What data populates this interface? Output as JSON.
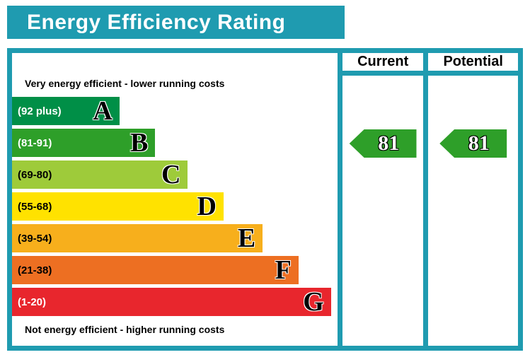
{
  "chart_data": {
    "type": "epc-energy-rating",
    "title": "Energy Efficiency Rating",
    "top_label": "Very energy efficient - lower running costs",
    "bottom_label": "Not energy efficient - higher running costs",
    "columns": {
      "current": "Current",
      "potential": "Potential"
    },
    "bands": [
      {
        "letter": "A",
        "range": "(92 plus)",
        "color": "#008f47",
        "text_color": "#ffffff",
        "width_pct": 33
      },
      {
        "letter": "B",
        "range": "(81-91)",
        "color": "#2e9f29",
        "text_color": "#ffffff",
        "width_pct": 44
      },
      {
        "letter": "C",
        "range": "(69-80)",
        "color": "#9ecb3a",
        "text_color": "#000000",
        "width_pct": 54
      },
      {
        "letter": "D",
        "range": "(55-68)",
        "color": "#ffe200",
        "text_color": "#000000",
        "width_pct": 65
      },
      {
        "letter": "E",
        "range": "(39-54)",
        "color": "#f7af1c",
        "text_color": "#000000",
        "width_pct": 77
      },
      {
        "letter": "F",
        "range": "(21-38)",
        "color": "#ed6f22",
        "text_color": "#000000",
        "width_pct": 88
      },
      {
        "letter": "G",
        "range": "(1-20)",
        "color": "#e8262d",
        "text_color": "#ffffff",
        "width_pct": 98
      }
    ],
    "current": {
      "value": 81,
      "band": "B",
      "arrow_color": "#2e9f29"
    },
    "potential": {
      "value": 81,
      "band": "B",
      "arrow_color": "#2e9f29"
    },
    "colors": {
      "frame": "#1f9bb0",
      "title_bg": "#1f9bb0",
      "arrow": "#2e9f29"
    }
  }
}
